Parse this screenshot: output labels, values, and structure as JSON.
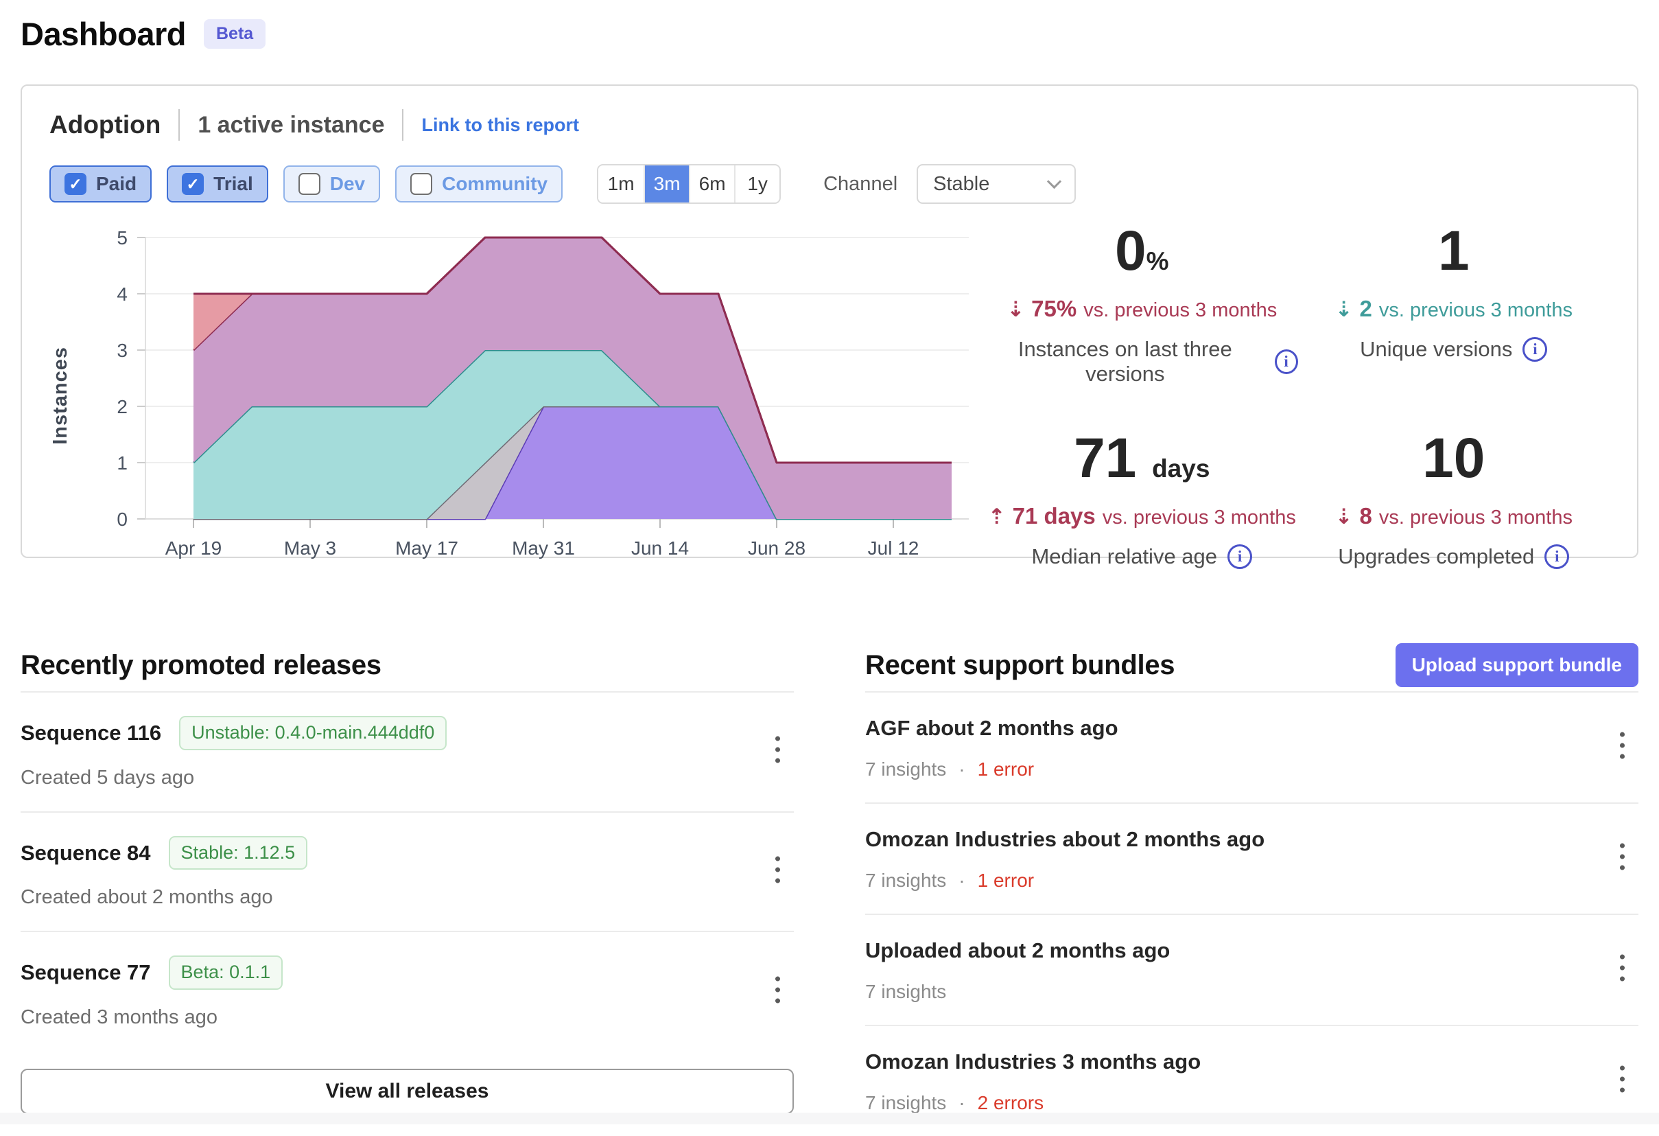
{
  "page": {
    "title": "Dashboard",
    "beta_badge": "Beta"
  },
  "icons": {
    "info": "i",
    "check": "✓",
    "separator_dot": "·"
  },
  "colors": {
    "accent_blue": "#3d74e0",
    "selected_range_blue": "#5b87e5",
    "delta_red": "#a93a55",
    "delta_teal": "#3f9c9a",
    "error_red": "#da3b2b",
    "badge_green": "#3d9049",
    "upload_indigo": "#6c70ee"
  },
  "adoption": {
    "title": "Adoption",
    "subtitle": "1 active instance",
    "link_label": "Link to this report",
    "filters": [
      {
        "label": "Paid",
        "checked": true
      },
      {
        "label": "Trial",
        "checked": true
      },
      {
        "label": "Dev",
        "checked": false
      },
      {
        "label": "Community",
        "checked": false
      }
    ],
    "ranges": [
      {
        "label": "1m",
        "active": false
      },
      {
        "label": "3m",
        "active": true
      },
      {
        "label": "6m",
        "active": false
      },
      {
        "label": "1y",
        "active": false
      }
    ],
    "channel": {
      "label": "Channel",
      "value": "Stable"
    },
    "stats": [
      {
        "value": "0",
        "unit": "%",
        "arrow": "⇣",
        "delta": "75%",
        "suffix": "vs. previous 3 months",
        "label": "Instances on last three versions",
        "tone": "red"
      },
      {
        "value": "1",
        "unit": "",
        "arrow": "⇣",
        "delta": "2",
        "suffix": "vs. previous 3 months",
        "label": "Unique versions",
        "tone": "teal"
      },
      {
        "value": "71",
        "unit": "days",
        "arrow": "⇡",
        "delta": "71 days",
        "suffix": "vs. previous 3 months",
        "label": "Median relative age",
        "tone": "red"
      },
      {
        "value": "10",
        "unit": "",
        "arrow": "⇣",
        "delta": "8",
        "suffix": "vs. previous 3 months",
        "label": "Upgrades completed",
        "tone": "red"
      }
    ]
  },
  "chart_data": {
    "type": "area",
    "stacked": true,
    "title": "",
    "xlabel": "",
    "ylabel": "Instances",
    "ylim": [
      0,
      5
    ],
    "yticks": [
      0,
      1,
      2,
      3,
      4,
      5
    ],
    "grid": true,
    "legend": false,
    "x": [
      "Apr 19",
      "Apr 26",
      "May 3",
      "May 10",
      "May 17",
      "May 24",
      "May 31",
      "Jun 7",
      "Jun 14",
      "Jun 21",
      "Jun 28",
      "Jul 5",
      "Jul 12",
      "Jul 19"
    ],
    "x_tick_labels": [
      "Apr 19",
      "May 3",
      "May 17",
      "May 31",
      "Jun 14",
      "Jun 28",
      "Jul 12"
    ],
    "series": [
      {
        "name": "band-purple",
        "fill": "#a78cec",
        "stroke": "#5c3cb5",
        "values": [
          0,
          0,
          0,
          0,
          0,
          0,
          2,
          2,
          2,
          2,
          0,
          0,
          0,
          0
        ]
      },
      {
        "name": "band-gray",
        "fill": "#c7c3c9",
        "stroke": "#6e6a74",
        "values": [
          0,
          0,
          0,
          0,
          0,
          1,
          0,
          0,
          0,
          0,
          0,
          0,
          0,
          0
        ]
      },
      {
        "name": "band-teal",
        "fill": "#a4dcda",
        "stroke": "#2e8e8e",
        "values": [
          1,
          2,
          2,
          2,
          2,
          2,
          1,
          1,
          0,
          0,
          0,
          0,
          0,
          0
        ]
      },
      {
        "name": "band-mauve",
        "fill": "#ca9cc9",
        "stroke": "#8e2c51",
        "values": [
          2,
          2,
          2,
          2,
          2,
          2,
          2,
          2,
          2,
          2,
          1,
          1,
          1,
          1
        ]
      },
      {
        "name": "band-salmon",
        "fill": "#e69ba4",
        "stroke": "#8e2c51",
        "values": [
          1,
          0,
          0,
          0,
          0,
          0,
          0,
          0,
          0,
          0,
          0,
          0,
          0,
          0
        ]
      }
    ],
    "totals": [
      4,
      4,
      4,
      4,
      4,
      5,
      5,
      5,
      4,
      4,
      1,
      1,
      1,
      1
    ]
  },
  "releases": {
    "heading": "Recently promoted releases",
    "view_all_label": "View all releases",
    "items": [
      {
        "name": "Sequence 116",
        "badge": "Unstable: 0.4.0-main.444ddf0",
        "created": "Created 5 days ago"
      },
      {
        "name": "Sequence 84",
        "badge": "Stable: 1.12.5",
        "created": "Created about 2 months ago"
      },
      {
        "name": "Sequence 77",
        "badge": "Beta: 0.1.1",
        "created": "Created 3 months ago"
      }
    ]
  },
  "bundles": {
    "heading": "Recent support bundles",
    "upload_label": "Upload support bundle",
    "items": [
      {
        "title": "AGF about 2 months ago",
        "insights": "7 insights",
        "errors": "1 error"
      },
      {
        "title": "Omozan Industries about 2 months ago",
        "insights": "7 insights",
        "errors": "1 error"
      },
      {
        "title": "Uploaded about 2 months ago",
        "insights": "7 insights",
        "errors": null
      },
      {
        "title": "Omozan Industries 3 months ago",
        "insights": "7 insights",
        "errors": "2 errors"
      }
    ]
  }
}
